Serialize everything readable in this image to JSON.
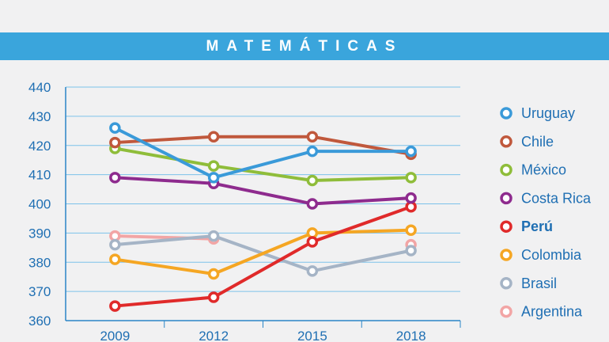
{
  "title": "MATEMÁTICAS",
  "chart_data": {
    "type": "line",
    "title": "MATEMÁTICAS",
    "x": [
      "2009",
      "2012",
      "2015",
      "2018"
    ],
    "ylim": [
      360,
      440
    ],
    "yticks": [
      360,
      370,
      380,
      390,
      400,
      410,
      420,
      430,
      440
    ],
    "grid": true,
    "legend_position": "right",
    "series": [
      {
        "name": "Uruguay",
        "color": "#3a9ad9",
        "values": [
          426,
          409,
          418,
          418
        ]
      },
      {
        "name": "Chile",
        "color": "#c0583c",
        "values": [
          421,
          423,
          423,
          417
        ]
      },
      {
        "name": "México",
        "color": "#8fbd3a",
        "values": [
          419,
          413,
          408,
          409
        ]
      },
      {
        "name": "Costa Rica",
        "color": "#8e2b8e",
        "values": [
          409,
          407,
          400,
          402
        ]
      },
      {
        "name": "Perú",
        "color": "#e02a2a",
        "values": [
          365,
          368,
          387,
          399
        ],
        "highlight": true
      },
      {
        "name": "Colombia",
        "color": "#f5a623",
        "values": [
          381,
          376,
          390,
          391
        ]
      },
      {
        "name": "Brasil",
        "color": "#a5b4c6",
        "values": [
          386,
          389,
          377,
          384
        ]
      },
      {
        "name": "Argentina",
        "color": "#f2a5a5",
        "values": [
          389,
          388,
          null,
          386
        ]
      }
    ]
  }
}
